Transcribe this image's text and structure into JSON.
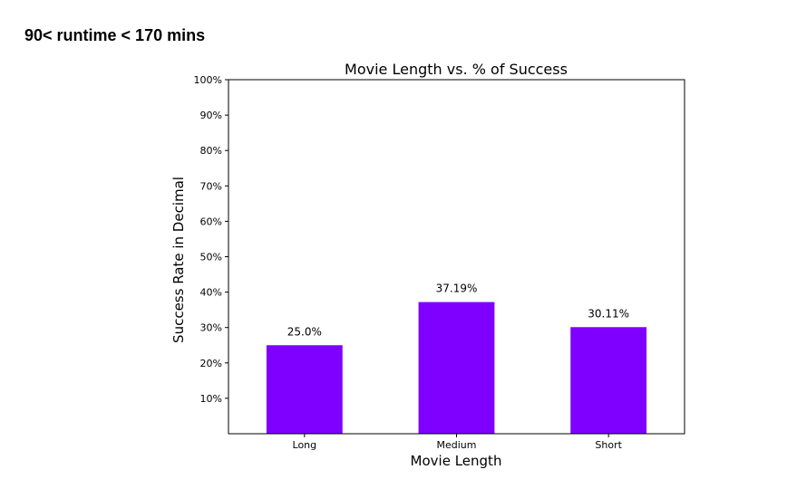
{
  "page": {
    "heading": "90< runtime < 170 mins"
  },
  "chart_data": {
    "type": "bar",
    "title": "Movie Length vs. % of Success",
    "xlabel": "Movie Length",
    "ylabel": "Success Rate in Decimal",
    "categories": [
      "Long",
      "Medium",
      "Short"
    ],
    "values": [
      25.0,
      37.19,
      30.11
    ],
    "value_labels": [
      "25.0%",
      "37.19%",
      "30.11%"
    ],
    "ylim": [
      0,
      100
    ],
    "yticks": [
      10,
      20,
      30,
      40,
      50,
      60,
      70,
      80,
      90,
      100
    ],
    "ytick_labels": [
      "10%",
      "20%",
      "30%",
      "40%",
      "50%",
      "60%",
      "70%",
      "80%",
      "90%",
      "100%"
    ],
    "bar_color": "#7f00ff",
    "grid": false,
    "legend": "none"
  }
}
